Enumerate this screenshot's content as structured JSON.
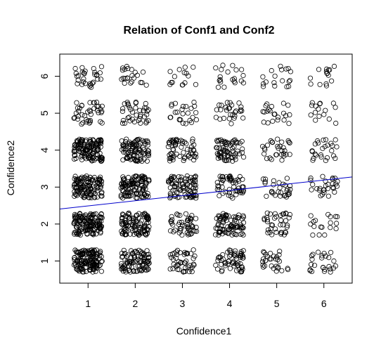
{
  "chart_data": {
    "type": "scatter",
    "title": "Relation of Conf1 and Conf2",
    "xlabel": "Confidence1",
    "ylabel": "Confidence2",
    "xlim": [
      0.4,
      6.6
    ],
    "ylim": [
      0.4,
      6.6
    ],
    "x_ticks": [
      1,
      2,
      3,
      4,
      5,
      6
    ],
    "y_ticks": [
      1,
      2,
      3,
      4,
      5,
      6
    ],
    "x_tick_labels": [
      "1",
      "2",
      "3",
      "4",
      "5",
      "6"
    ],
    "y_tick_labels": [
      "1",
      "2",
      "3",
      "4",
      "5",
      "6"
    ],
    "grid": false,
    "jitter": 0.3,
    "point_color": "#000000",
    "fit_line": {
      "intercept": 2.35,
      "slope": 0.14,
      "color": "#0000cc"
    },
    "cell_counts": [
      [
        150,
        95,
        45,
        60,
        30,
        25
      ],
      [
        140,
        110,
        50,
        85,
        38,
        18
      ],
      [
        125,
        115,
        85,
        55,
        30,
        28
      ],
      [
        135,
        95,
        60,
        70,
        30,
        25
      ],
      [
        40,
        38,
        25,
        28,
        22,
        16
      ],
      [
        30,
        22,
        15,
        20,
        18,
        15
      ]
    ]
  }
}
